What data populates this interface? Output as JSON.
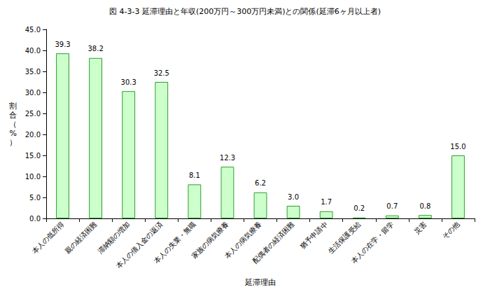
{
  "chart_data": {
    "type": "bar",
    "title": "図 4-3-3 延滞理由と年収(200万円～300万円未満)との関係(延滞6ヶ月以上者)",
    "xlabel": "延滞理由",
    "ylabel": "割合（%）",
    "categories": [
      "本人の低所得",
      "親の経済困難",
      "滞納額の増加",
      "本人の借入金の返済",
      "本人の失業・無職",
      "家族の病気療養",
      "本人の病気療養",
      "配偶者の経済困難",
      "猶予申請中",
      "生活保護受給",
      "本人の在学・留学",
      "災害",
      "その他"
    ],
    "values": [
      39.3,
      38.2,
      30.3,
      32.5,
      8.1,
      12.3,
      6.2,
      3.0,
      1.7,
      0.2,
      0.7,
      0.8,
      15.0
    ],
    "value_labels": [
      "39.3",
      "38.2",
      "30.3",
      "32.5",
      "8.1",
      "12.3",
      "6.2",
      "3.0",
      "1.7",
      "0.2",
      "0.7",
      "0.8",
      "15.0"
    ],
    "color": "#ccffcc",
    "ylim": [
      0,
      45
    ],
    "yticks": [
      {
        "value": 0,
        "label": "0.0"
      },
      {
        "value": 5,
        "label": "5.0"
      },
      {
        "value": 10,
        "label": "10.0"
      },
      {
        "value": 15,
        "label": "15.0"
      },
      {
        "value": 20,
        "label": "20.0"
      },
      {
        "value": 25,
        "label": "25.0"
      },
      {
        "value": 30,
        "label": "30.0"
      },
      {
        "value": 35,
        "label": "35.0"
      },
      {
        "value": 40,
        "label": "40.0"
      },
      {
        "value": 45,
        "label": "45.0"
      }
    ],
    "grid": false,
    "data_labels": true
  }
}
